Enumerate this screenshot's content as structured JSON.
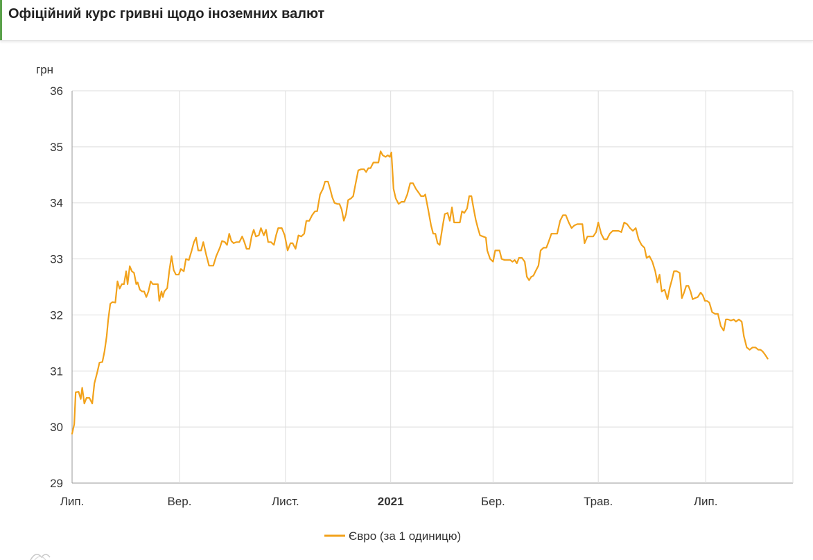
{
  "page": {
    "title": "Офіційний курс гривні щодо іноземних валют"
  },
  "chart_data": {
    "type": "line",
    "ylabel": "грн",
    "ylim": [
      29,
      36
    ],
    "yticks": [
      29,
      30,
      31,
      32,
      33,
      34,
      35,
      36
    ],
    "xlim": [
      0,
      1
    ],
    "xticks": [
      {
        "pos": 0.0,
        "label": "Лип.",
        "bold": false
      },
      {
        "pos": 0.149,
        "label": "Вер.",
        "bold": false
      },
      {
        "pos": 0.296,
        "label": "Лист.",
        "bold": false
      },
      {
        "pos": 0.442,
        "label": "2021",
        "bold": true
      },
      {
        "pos": 0.584,
        "label": "Бер.",
        "bold": false
      },
      {
        "pos": 0.73,
        "label": "Трав.",
        "bold": false
      },
      {
        "pos": 0.879,
        "label": "Лип.",
        "bold": false
      }
    ],
    "grid": true,
    "legend": "bottom",
    "colors": {
      "line": "#f2a21b",
      "grid": "#dddddd",
      "axis": "#999999"
    },
    "series": [
      {
        "name": "Євро (за 1 одиницю)",
        "points": [
          [
            0.0,
            29.88
          ],
          [
            0.003,
            30.05
          ],
          [
            0.005,
            30.62
          ],
          [
            0.009,
            30.63
          ],
          [
            0.012,
            30.5
          ],
          [
            0.014,
            30.7
          ],
          [
            0.017,
            30.42
          ],
          [
            0.02,
            30.52
          ],
          [
            0.024,
            30.52
          ],
          [
            0.028,
            30.42
          ],
          [
            0.031,
            30.78
          ],
          [
            0.035,
            30.98
          ],
          [
            0.038,
            31.15
          ],
          [
            0.042,
            31.16
          ],
          [
            0.045,
            31.35
          ],
          [
            0.048,
            31.62
          ],
          [
            0.05,
            31.9
          ],
          [
            0.053,
            32.2
          ],
          [
            0.056,
            32.23
          ],
          [
            0.06,
            32.22
          ],
          [
            0.063,
            32.6
          ],
          [
            0.066,
            32.47
          ],
          [
            0.069,
            32.55
          ],
          [
            0.072,
            32.55
          ],
          [
            0.075,
            32.78
          ],
          [
            0.077,
            32.55
          ],
          [
            0.08,
            32.87
          ],
          [
            0.083,
            32.78
          ],
          [
            0.086,
            32.75
          ],
          [
            0.089,
            32.55
          ],
          [
            0.091,
            32.58
          ],
          [
            0.094,
            32.45
          ],
          [
            0.097,
            32.42
          ],
          [
            0.1,
            32.42
          ],
          [
            0.103,
            32.32
          ],
          [
            0.106,
            32.42
          ],
          [
            0.109,
            32.6
          ],
          [
            0.112,
            32.55
          ],
          [
            0.116,
            32.55
          ],
          [
            0.119,
            32.55
          ],
          [
            0.121,
            32.25
          ],
          [
            0.124,
            32.42
          ],
          [
            0.126,
            32.32
          ],
          [
            0.128,
            32.42
          ],
          [
            0.132,
            32.48
          ],
          [
            0.135,
            32.8
          ],
          [
            0.138,
            33.05
          ],
          [
            0.141,
            32.8
          ],
          [
            0.144,
            32.72
          ],
          [
            0.148,
            32.72
          ],
          [
            0.151,
            32.82
          ],
          [
            0.155,
            32.78
          ],
          [
            0.158,
            33.0
          ],
          [
            0.162,
            32.98
          ],
          [
            0.166,
            33.15
          ],
          [
            0.169,
            33.3
          ],
          [
            0.172,
            33.38
          ],
          [
            0.175,
            33.15
          ],
          [
            0.179,
            33.15
          ],
          [
            0.182,
            33.3
          ],
          [
            0.186,
            33.08
          ],
          [
            0.19,
            32.88
          ],
          [
            0.196,
            32.88
          ],
          [
            0.2,
            33.05
          ],
          [
            0.205,
            33.2
          ],
          [
            0.208,
            33.32
          ],
          [
            0.212,
            33.3
          ],
          [
            0.215,
            33.25
          ],
          [
            0.218,
            33.45
          ],
          [
            0.221,
            33.32
          ],
          [
            0.224,
            33.28
          ],
          [
            0.228,
            33.3
          ],
          [
            0.232,
            33.3
          ],
          [
            0.236,
            33.4
          ],
          [
            0.239,
            33.3
          ],
          [
            0.242,
            33.18
          ],
          [
            0.246,
            33.18
          ],
          [
            0.249,
            33.4
          ],
          [
            0.252,
            33.52
          ],
          [
            0.255,
            33.4
          ],
          [
            0.259,
            33.42
          ],
          [
            0.262,
            33.55
          ],
          [
            0.266,
            33.42
          ],
          [
            0.269,
            33.52
          ],
          [
            0.272,
            33.3
          ],
          [
            0.276,
            33.3
          ],
          [
            0.28,
            33.25
          ],
          [
            0.283,
            33.42
          ],
          [
            0.286,
            33.55
          ],
          [
            0.291,
            33.55
          ],
          [
            0.295,
            33.42
          ],
          [
            0.299,
            33.15
          ],
          [
            0.303,
            33.28
          ],
          [
            0.306,
            33.28
          ],
          [
            0.31,
            33.18
          ],
          [
            0.314,
            33.42
          ],
          [
            0.318,
            33.4
          ],
          [
            0.322,
            33.45
          ],
          [
            0.325,
            33.68
          ],
          [
            0.329,
            33.68
          ],
          [
            0.333,
            33.78
          ],
          [
            0.337,
            33.85
          ],
          [
            0.34,
            33.85
          ],
          [
            0.344,
            34.15
          ],
          [
            0.348,
            34.25
          ],
          [
            0.351,
            34.38
          ],
          [
            0.355,
            34.38
          ],
          [
            0.358,
            34.25
          ],
          [
            0.361,
            34.1
          ],
          [
            0.364,
            34.0
          ],
          [
            0.368,
            33.98
          ],
          [
            0.371,
            33.98
          ],
          [
            0.374,
            33.88
          ],
          [
            0.377,
            33.68
          ],
          [
            0.38,
            33.8
          ],
          [
            0.383,
            34.05
          ],
          [
            0.387,
            34.08
          ],
          [
            0.39,
            34.12
          ],
          [
            0.393,
            34.32
          ],
          [
            0.397,
            34.58
          ],
          [
            0.401,
            34.6
          ],
          [
            0.405,
            34.6
          ],
          [
            0.408,
            34.55
          ],
          [
            0.411,
            34.62
          ],
          [
            0.414,
            34.62
          ],
          [
            0.418,
            34.72
          ],
          [
            0.422,
            34.72
          ],
          [
            0.425,
            34.72
          ],
          [
            0.428,
            34.92
          ],
          [
            0.431,
            34.85
          ],
          [
            0.435,
            34.82
          ],
          [
            0.438,
            34.85
          ],
          [
            0.441,
            34.82
          ],
          [
            0.443,
            34.9
          ],
          [
            0.446,
            34.25
          ],
          [
            0.449,
            34.08
          ],
          [
            0.453,
            33.98
          ],
          [
            0.457,
            34.02
          ],
          [
            0.461,
            34.02
          ],
          [
            0.465,
            34.15
          ],
          [
            0.469,
            34.35
          ],
          [
            0.473,
            34.35
          ],
          [
            0.477,
            34.25
          ],
          [
            0.481,
            34.18
          ],
          [
            0.484,
            34.12
          ],
          [
            0.488,
            34.12
          ],
          [
            0.49,
            34.15
          ],
          [
            0.494,
            33.88
          ],
          [
            0.498,
            33.6
          ],
          [
            0.501,
            33.45
          ],
          [
            0.504,
            33.45
          ],
          [
            0.507,
            33.28
          ],
          [
            0.51,
            33.25
          ],
          [
            0.514,
            33.58
          ],
          [
            0.517,
            33.8
          ],
          [
            0.521,
            33.82
          ],
          [
            0.524,
            33.68
          ],
          [
            0.527,
            33.92
          ],
          [
            0.53,
            33.65
          ],
          [
            0.534,
            33.65
          ],
          [
            0.538,
            33.65
          ],
          [
            0.541,
            33.85
          ],
          [
            0.544,
            33.82
          ],
          [
            0.548,
            33.9
          ],
          [
            0.551,
            34.12
          ],
          [
            0.554,
            34.12
          ],
          [
            0.557,
            33.9
          ],
          [
            0.56,
            33.7
          ],
          [
            0.563,
            33.55
          ],
          [
            0.566,
            33.42
          ],
          [
            0.57,
            33.4
          ],
          [
            0.574,
            33.38
          ],
          [
            0.576,
            33.15
          ],
          [
            0.58,
            33.0
          ],
          [
            0.584,
            32.95
          ],
          [
            0.587,
            33.15
          ],
          [
            0.59,
            33.15
          ],
          [
            0.593,
            33.15
          ],
          [
            0.596,
            33.0
          ],
          [
            0.6,
            32.98
          ],
          [
            0.604,
            32.98
          ],
          [
            0.608,
            32.98
          ],
          [
            0.611,
            32.95
          ],
          [
            0.614,
            32.98
          ],
          [
            0.617,
            32.92
          ],
          [
            0.62,
            33.02
          ],
          [
            0.624,
            33.02
          ],
          [
            0.628,
            32.95
          ],
          [
            0.631,
            32.68
          ],
          [
            0.634,
            32.62
          ],
          [
            0.637,
            32.68
          ],
          [
            0.64,
            32.7
          ],
          [
            0.643,
            32.78
          ],
          [
            0.647,
            32.88
          ],
          [
            0.65,
            33.15
          ],
          [
            0.654,
            33.2
          ],
          [
            0.658,
            33.2
          ],
          [
            0.661,
            33.3
          ],
          [
            0.665,
            33.45
          ],
          [
            0.669,
            33.45
          ],
          [
            0.673,
            33.45
          ],
          [
            0.677,
            33.68
          ],
          [
            0.681,
            33.78
          ],
          [
            0.685,
            33.78
          ],
          [
            0.689,
            33.65
          ],
          [
            0.693,
            33.55
          ],
          [
            0.697,
            33.6
          ],
          [
            0.701,
            33.62
          ],
          [
            0.705,
            33.62
          ],
          [
            0.708,
            33.62
          ],
          [
            0.711,
            33.28
          ],
          [
            0.715,
            33.4
          ],
          [
            0.719,
            33.4
          ],
          [
            0.723,
            33.4
          ],
          [
            0.727,
            33.48
          ],
          [
            0.73,
            33.65
          ],
          [
            0.734,
            33.45
          ],
          [
            0.738,
            33.35
          ],
          [
            0.742,
            33.35
          ],
          [
            0.746,
            33.45
          ],
          [
            0.75,
            33.5
          ],
          [
            0.754,
            33.5
          ],
          [
            0.758,
            33.5
          ],
          [
            0.762,
            33.48
          ],
          [
            0.766,
            33.65
          ],
          [
            0.77,
            33.62
          ],
          [
            0.774,
            33.55
          ],
          [
            0.778,
            33.5
          ],
          [
            0.782,
            33.55
          ],
          [
            0.786,
            33.35
          ],
          [
            0.79,
            33.25
          ],
          [
            0.794,
            33.2
          ],
          [
            0.797,
            33.02
          ],
          [
            0.801,
            33.05
          ],
          [
            0.805,
            32.95
          ],
          [
            0.809,
            32.78
          ],
          [
            0.812,
            32.58
          ],
          [
            0.815,
            32.72
          ],
          [
            0.818,
            32.42
          ],
          [
            0.822,
            32.45
          ],
          [
            0.826,
            32.28
          ],
          [
            0.829,
            32.48
          ],
          [
            0.832,
            32.62
          ],
          [
            0.835,
            32.78
          ],
          [
            0.839,
            32.78
          ],
          [
            0.843,
            32.75
          ],
          [
            0.846,
            32.3
          ],
          [
            0.849,
            32.4
          ],
          [
            0.852,
            32.52
          ],
          [
            0.855,
            32.52
          ],
          [
            0.858,
            32.42
          ],
          [
            0.861,
            32.28
          ],
          [
            0.864,
            32.3
          ],
          [
            0.868,
            32.32
          ],
          [
            0.872,
            32.4
          ],
          [
            0.875,
            32.35
          ],
          [
            0.878,
            32.25
          ],
          [
            0.881,
            32.25
          ],
          [
            0.884,
            32.22
          ],
          [
            0.888,
            32.05
          ],
          [
            0.892,
            32.02
          ],
          [
            0.896,
            32.02
          ],
          [
            0.9,
            31.8
          ],
          [
            0.904,
            31.72
          ],
          [
            0.907,
            31.92
          ],
          [
            0.91,
            31.92
          ],
          [
            0.914,
            31.9
          ],
          [
            0.918,
            31.92
          ],
          [
            0.921,
            31.88
          ],
          [
            0.925,
            31.92
          ],
          [
            0.929,
            31.88
          ],
          [
            0.932,
            31.62
          ],
          [
            0.936,
            31.42
          ],
          [
            0.94,
            31.38
          ],
          [
            0.944,
            31.42
          ],
          [
            0.948,
            31.42
          ],
          [
            0.952,
            31.38
          ],
          [
            0.955,
            31.38
          ],
          [
            0.958,
            31.35
          ],
          [
            0.962,
            31.28
          ],
          [
            0.965,
            31.22
          ]
        ]
      }
    ]
  }
}
